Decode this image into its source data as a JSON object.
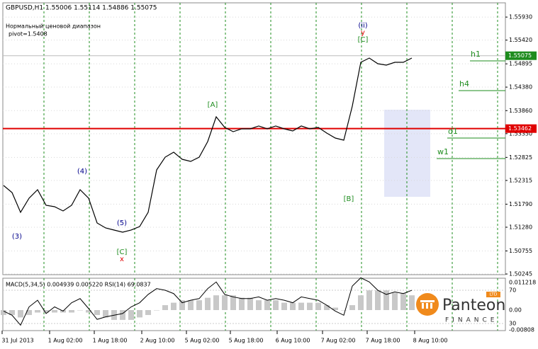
{
  "chart_data": {
    "type": "line",
    "title": "GBPUSD,H1  1.55006 1.55114 1.54886 1.55075",
    "indicator_name": "Нормальный ценовой диапазон",
    "pivot": "pivot=1.5408",
    "ylim": [
      1.5023,
      1.56245
    ],
    "yticks": [
      {
        "value": 1.5593,
        "label": "1.55930"
      },
      {
        "value": 1.5542,
        "label": "1.55420"
      },
      1.54895,
      {
        "value": 1.5438,
        "label": "1.54380"
      },
      {
        "value": 1.5386,
        "label": "1.53860"
      },
      {
        "value": 1.5335,
        "label": "1.53350"
      },
      1.52825,
      1.52315,
      {
        "value": 1.5179,
        "label": "1.51790"
      },
      {
        "value": 1.5128,
        "label": "1.51280"
      },
      1.50755,
      1.50245
    ],
    "xlabels": [
      "31 Jul 2013",
      "1 Aug 02:00",
      "1 Aug 18:00",
      "2 Aug 10:00",
      "5 Aug 02:00",
      "5 Aug 18:00",
      "6 Aug 10:00",
      "7 Aug 02:00",
      "7 Aug 18:00",
      "8 Aug 10:00"
    ],
    "grid": true,
    "series": [
      {
        "name": "GBPUSD",
        "color": "#000000",
        "values": [
          1.52204,
          1.52047,
          1.51609,
          1.51922,
          1.5211,
          1.51765,
          1.51734,
          1.5164,
          1.51765,
          1.5211,
          1.51922,
          1.51374,
          1.51264,
          1.51217,
          1.5117,
          1.51217,
          1.51295,
          1.51609,
          1.52548,
          1.5283,
          1.5294,
          1.52783,
          1.52736,
          1.5283,
          1.53175,
          1.53723,
          1.53488,
          1.53394,
          1.53457,
          1.53457,
          1.5352,
          1.53457,
          1.5352,
          1.53457,
          1.5341,
          1.5352,
          1.53457,
          1.53488,
          1.53363,
          1.53253,
          1.53206,
          1.53958,
          1.54929,
          1.55023,
          1.54898,
          1.54867,
          1.54929,
          1.54929,
          1.55023
        ]
      }
    ],
    "last_price": 1.55075,
    "red_line": 1.53462,
    "range_box": [
      1.51953,
      1.5388
    ],
    "levels": [
      {
        "name": "h1",
        "value": 1.54961
      },
      {
        "name": "h4",
        "value": 1.54303
      },
      {
        "name": "d1",
        "value": 1.53253
      },
      {
        "name": "w1",
        "value": 1.52799
      }
    ],
    "annotations": [
      "(3)",
      "(4)",
      "(5)",
      "[C]",
      "x",
      "[A]",
      "(ii)",
      "y",
      "[C]",
      "[B]"
    ],
    "sub": {
      "label": "MACD(5,34,5) 0.004939 0.005220  RSI(14) 69.0837",
      "macd_ylim": [
        -0.00835,
        0.01296
      ],
      "macd_ticks": [
        0.011218,
        {
          "value": 0,
          "label": "0.00"
        },
        -0.00808
      ],
      "rsi_ylim": [
        21.5,
        84.5
      ],
      "rsi_ticks": [
        70,
        30
      ],
      "macd": [
        -0.002,
        -0.002,
        -0.003,
        -0.002,
        -0.001,
        -0.001,
        -0.001,
        -0.001,
        -0.001,
        0,
        -0.001,
        -0.002,
        -0.003,
        -0.004,
        -0.004,
        -0.004,
        -0.003,
        -0.002,
        0,
        0.002,
        0.003,
        0.004,
        0.004,
        0.004,
        0.005,
        0.006,
        0.006,
        0.006,
        0.005,
        0.005,
        0.004,
        0.004,
        0.004,
        0.003,
        0.003,
        0.003,
        0.003,
        0.003,
        0.002,
        0.001,
        0,
        0.002,
        0.006,
        0.008,
        0.008,
        0.008,
        0.007,
        0.007,
        0.006
      ],
      "rsi": [
        45,
        40,
        28,
        50,
        58,
        42,
        50,
        45,
        55,
        60,
        48,
        35,
        38,
        40,
        42,
        50,
        55,
        65,
        72,
        70,
        66,
        55,
        58,
        60,
        72,
        80,
        65,
        62,
        60,
        60,
        62,
        58,
        60,
        58,
        55,
        62,
        60,
        58,
        52,
        45,
        40,
        75,
        85,
        80,
        70,
        65,
        68,
        66,
        70
      ]
    },
    "logo": {
      "name": "Panteon",
      "sub": "FINANCE",
      "badge": "LTD"
    }
  }
}
